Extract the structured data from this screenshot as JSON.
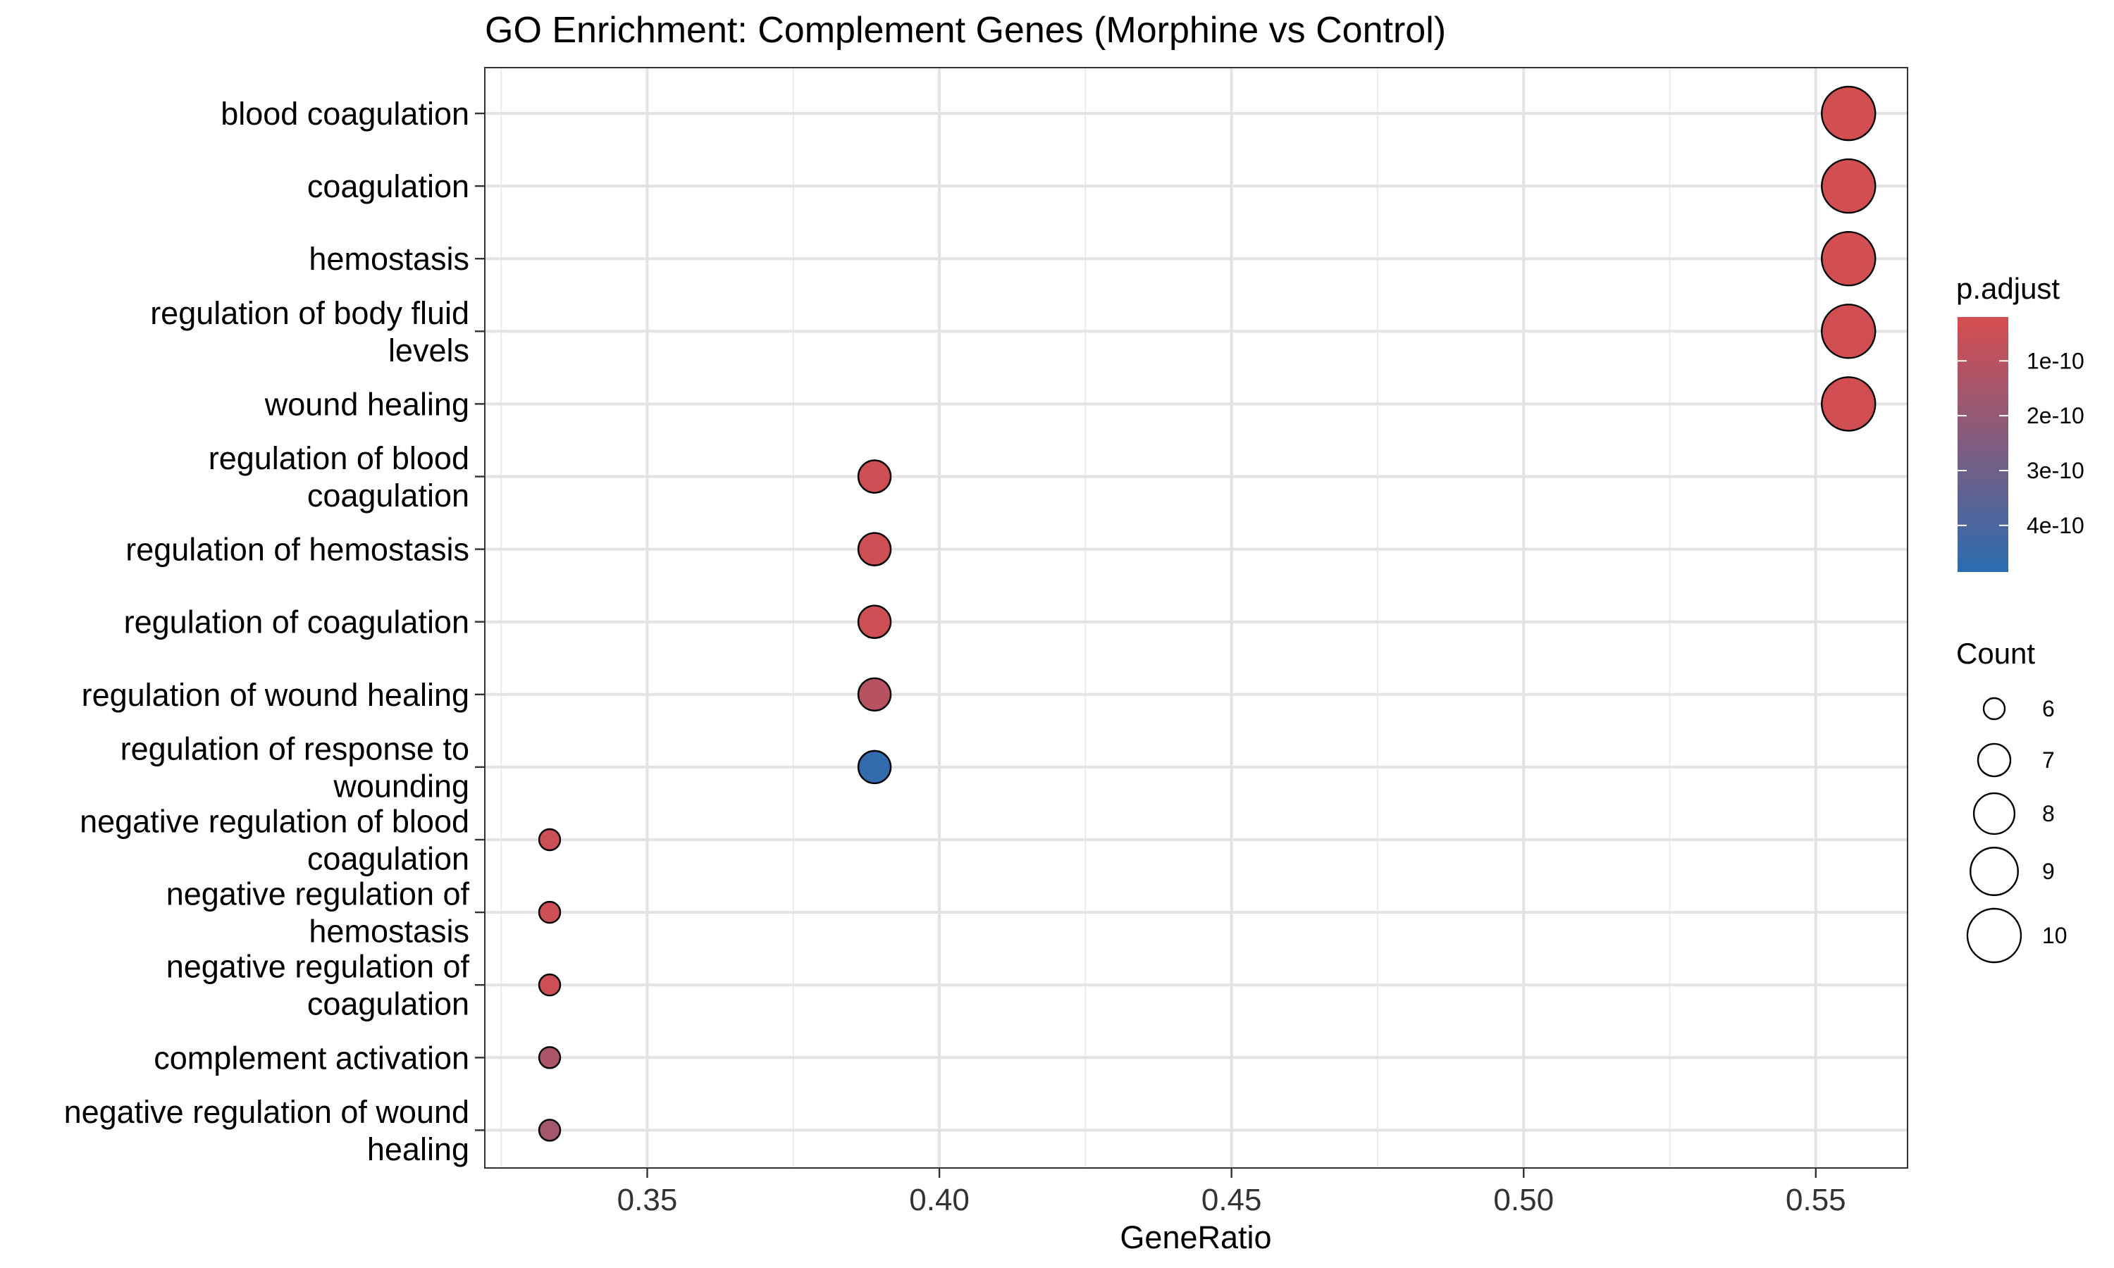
{
  "chart_data": {
    "type": "scatter",
    "title": "GO Enrichment: Complement Genes (Morphine vs Control)",
    "xlabel": "GeneRatio",
    "ylabel": "",
    "xlim": [
      0.3222,
      0.5657
    ],
    "xticks": [
      0.35,
      0.4,
      0.45,
      0.5,
      0.55
    ],
    "xtick_labels": [
      "0.35",
      "0.40",
      "0.45",
      "0.50",
      "0.55"
    ],
    "grid": true,
    "points": [
      {
        "term": [
          "blood coagulation"
        ],
        "gene_ratio": 0.5556,
        "count": 10,
        "p_adjust": 3e-11
      },
      {
        "term": [
          "coagulation"
        ],
        "gene_ratio": 0.5556,
        "count": 10,
        "p_adjust": 3e-11
      },
      {
        "term": [
          "hemostasis"
        ],
        "gene_ratio": 0.5556,
        "count": 10,
        "p_adjust": 3e-11
      },
      {
        "term": [
          "regulation of body fluid",
          "levels"
        ],
        "gene_ratio": 0.5556,
        "count": 10,
        "p_adjust": 3.5e-11
      },
      {
        "term": [
          "wound healing"
        ],
        "gene_ratio": 0.5556,
        "count": 10,
        "p_adjust": 3.5e-11
      },
      {
        "term": [
          "regulation of blood",
          "coagulation"
        ],
        "gene_ratio": 0.3889,
        "count": 7,
        "p_adjust": 4.5e-11
      },
      {
        "term": [
          "regulation of hemostasis"
        ],
        "gene_ratio": 0.3889,
        "count": 7,
        "p_adjust": 4.5e-11
      },
      {
        "term": [
          "regulation of coagulation"
        ],
        "gene_ratio": 0.3889,
        "count": 7,
        "p_adjust": 4.5e-11
      },
      {
        "term": [
          "regulation of wound healing"
        ],
        "gene_ratio": 0.3889,
        "count": 7,
        "p_adjust": 1.05e-10
      },
      {
        "term": [
          "regulation of response to",
          "wounding"
        ],
        "gene_ratio": 0.3889,
        "count": 7,
        "p_adjust": 4.7e-10
      },
      {
        "term": [
          "negative regulation of blood",
          "coagulation"
        ],
        "gene_ratio": 0.3333,
        "count": 6,
        "p_adjust": 5e-11
      },
      {
        "term": [
          "negative regulation of",
          "hemostasis"
        ],
        "gene_ratio": 0.3333,
        "count": 6,
        "p_adjust": 5e-11
      },
      {
        "term": [
          "negative regulation of",
          "coagulation"
        ],
        "gene_ratio": 0.3333,
        "count": 6,
        "p_adjust": 5e-11
      },
      {
        "term": [
          "complement activation"
        ],
        "gene_ratio": 0.3333,
        "count": 6,
        "p_adjust": 1.35e-10
      },
      {
        "term": [
          "negative regulation of wound",
          "healing"
        ],
        "gene_ratio": 0.3333,
        "count": 6,
        "p_adjust": 1.6e-10
      }
    ],
    "legend_color": {
      "title": "p.adjust",
      "low_color": "#d64d4f",
      "high_color": "#2b6cb0",
      "range": [
        2e-11,
        4.85e-10
      ],
      "ticks": [
        1e-10,
        2e-10,
        3e-10,
        4e-10
      ],
      "tick_labels": [
        "1e-10",
        "2e-10",
        "3e-10",
        "4e-10"
      ],
      "placement": "right"
    },
    "legend_size": {
      "title": "Count",
      "values": [
        6,
        7,
        8,
        9,
        10
      ],
      "labels": [
        "6",
        "7",
        "8",
        "9",
        "10"
      ],
      "placement": "right"
    }
  }
}
